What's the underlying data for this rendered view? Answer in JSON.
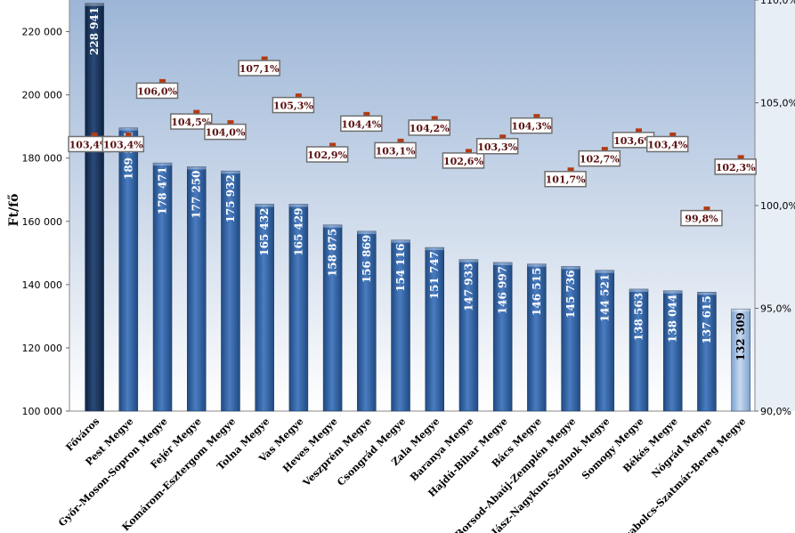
{
  "chart_data": {
    "type": "bar",
    "ylabel": "Ft/fő",
    "ylim": [
      100000,
      230000
    ],
    "y_ticks": [
      "100 000",
      "120 000",
      "140 000",
      "160 000",
      "180 000",
      "200 000",
      "220 000"
    ],
    "y2lim": [
      90.0,
      110.0
    ],
    "y2_ticks": [
      "90,0%",
      "95,0%",
      "100,0%",
      "105,0%",
      "110,0%"
    ],
    "grid": false,
    "categories": [
      "Főváros",
      "Pest Megye",
      "Győr-Moson-Sopron Megye",
      "Fejér Megye",
      "Komárom-Esztergom Megye",
      "Tolna Megye",
      "Vas Megye",
      "Heves Megye",
      "Veszprém Megye",
      "Csongrád Megye",
      "Zala Megye",
      "Baranya Megye",
      "Hajdú-Bihar Megye",
      "Bács Megye",
      "Borsod-Abaúj-Zemplén Megye",
      "Jász-Nagykun-Szolnok Megye",
      "Somogy Megye",
      "Békés Megye",
      "Nógrád Megye",
      "Szabolcs-Szatmár-Bereg Megye"
    ],
    "values": [
      228941,
      189554,
      178471,
      177250,
      175932,
      165432,
      165429,
      158875,
      156869,
      154116,
      151747,
      147933,
      146997,
      146515,
      145736,
      144521,
      138563,
      138044,
      137615,
      132309
    ],
    "value_labels": [
      "228 941",
      "189 554",
      "178 471",
      "177 250",
      "175 932",
      "165 432",
      "165 429",
      "158 875",
      "156 869",
      "154 116",
      "151 747",
      "147 933",
      "146 997",
      "146 515",
      "145 736",
      "144 521",
      "138 563",
      "138 044",
      "137 615",
      "132 309"
    ],
    "index_values": [
      103.4,
      103.4,
      106.0,
      104.5,
      104.0,
      107.1,
      105.3,
      102.9,
      104.4,
      103.1,
      104.2,
      102.6,
      103.3,
      104.3,
      101.7,
      102.7,
      103.6,
      103.4,
      99.8,
      102.3
    ],
    "index_labels": [
      "103,4%",
      "103,4%",
      "106,0%",
      "104,5%",
      "104,0%",
      "107,1%",
      "105,3%",
      "102,9%",
      "104,4%",
      "103,1%",
      "104,2%",
      "102,6%",
      "103,3%",
      "104,3%",
      "101,7%",
      "102,7%",
      "103,6%",
      "103,4%",
      "99,8%",
      "102,3%"
    ],
    "colors": {
      "bar": "#2e5d9a",
      "bar_first": "#1b3358",
      "bar_last": "#9cbbe0",
      "marker": "#b23a10",
      "label_border": "#7a7a7a",
      "plot_bg_top": "#9fb8d8",
      "plot_bg_bottom": "#ffffff"
    }
  }
}
